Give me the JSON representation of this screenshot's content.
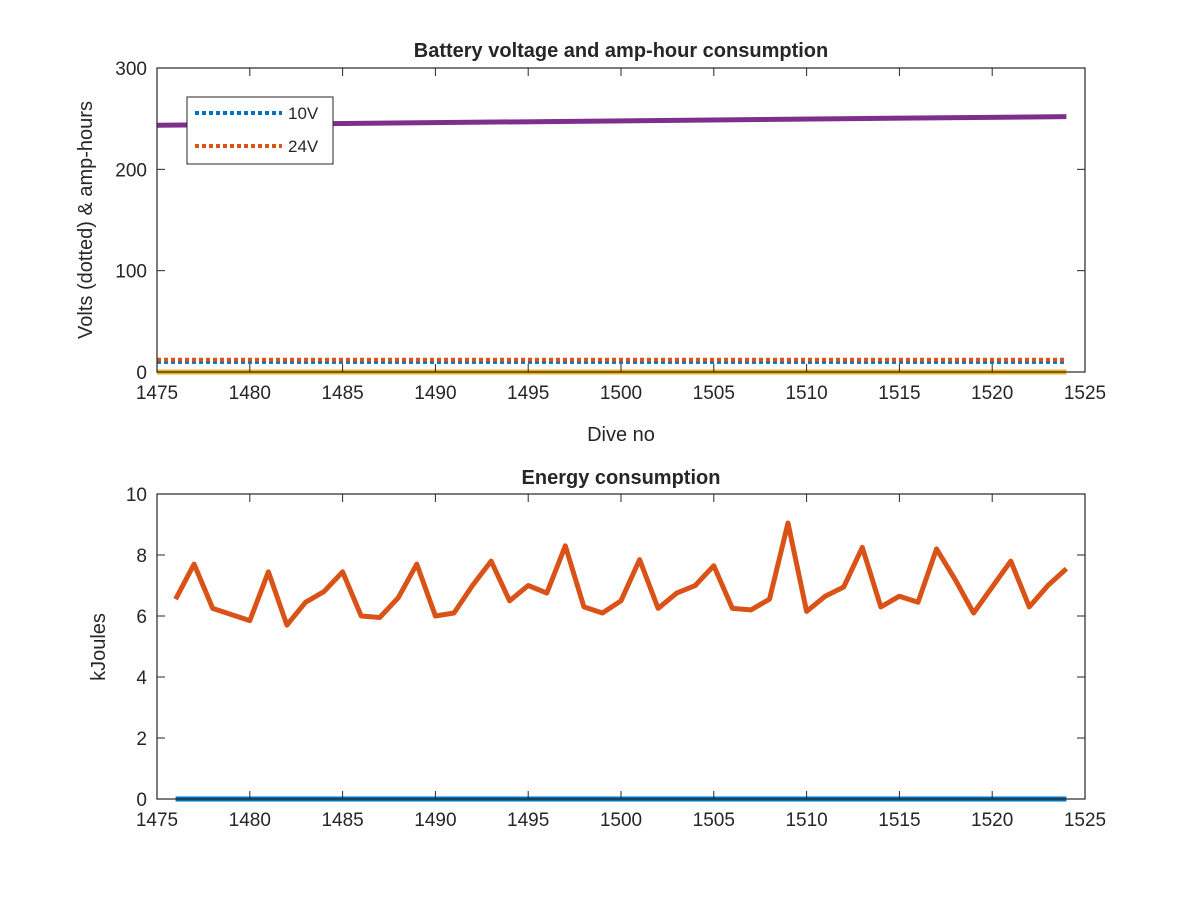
{
  "chart_data": [
    {
      "type": "line",
      "title": "Battery voltage and amp-hour consumption",
      "xlabel": "Dive no",
      "ylabel": "Volts (dotted) & amp-hours",
      "xlim": [
        1475,
        1525
      ],
      "ylim": [
        0,
        300
      ],
      "xticks": [
        1475,
        1480,
        1485,
        1490,
        1495,
        1500,
        1505,
        1510,
        1515,
        1520,
        1525
      ],
      "yticks": [
        0,
        100,
        200,
        300
      ],
      "grid": false,
      "legend": {
        "placement": "top-left",
        "entries": [
          "10V",
          "24V"
        ]
      },
      "series": [
        {
          "name": "10V",
          "style": "dotted",
          "color": "#0072BD",
          "x": [
            1475,
            1524
          ],
          "y": [
            10,
            10
          ]
        },
        {
          "name": "24V",
          "style": "dotted",
          "color": "#D95319",
          "x": [
            1475,
            1524
          ],
          "y": [
            12,
            12
          ]
        },
        {
          "style": "solid",
          "color": "#7E2F8E",
          "x": [
            1475,
            1524
          ],
          "y": [
            243.5,
            252
          ]
        },
        {
          "style": "solid",
          "color": "#EDB120",
          "x": [
            1475,
            1524
          ],
          "y": [
            0,
            0
          ]
        }
      ]
    },
    {
      "type": "line",
      "title": "Energy consumption",
      "xlabel": "",
      "ylabel": "kJoules",
      "xlim": [
        1475,
        1525
      ],
      "ylim": [
        0,
        10
      ],
      "xticks": [
        1475,
        1480,
        1485,
        1490,
        1495,
        1500,
        1505,
        1510,
        1515,
        1520,
        1525
      ],
      "yticks": [
        0,
        2,
        4,
        6,
        8,
        10
      ],
      "grid": false,
      "series": [
        {
          "style": "solid",
          "color": "#0072BD",
          "x": [
            1476,
            1524
          ],
          "y": [
            0,
            0
          ]
        },
        {
          "style": "solid",
          "color": "#D95319",
          "x": [
            1476,
            1477,
            1478,
            1479,
            1480,
            1481,
            1482,
            1483,
            1484,
            1485,
            1486,
            1487,
            1488,
            1489,
            1490,
            1491,
            1492,
            1493,
            1494,
            1495,
            1496,
            1497,
            1498,
            1499,
            1500,
            1501,
            1502,
            1503,
            1504,
            1505,
            1506,
            1507,
            1508,
            1509,
            1510,
            1511,
            1512,
            1513,
            1514,
            1515,
            1516,
            1517,
            1518,
            1519,
            1520,
            1521,
            1522,
            1523,
            1524
          ],
          "y": [
            6.55,
            7.7,
            6.25,
            6.05,
            5.85,
            7.45,
            5.7,
            6.45,
            6.8,
            7.45,
            6.0,
            5.95,
            6.6,
            7.7,
            6.0,
            6.1,
            7.0,
            7.8,
            6.5,
            7.0,
            6.75,
            8.3,
            6.3,
            6.1,
            6.5,
            7.85,
            6.25,
            6.75,
            7.0,
            7.65,
            6.25,
            6.2,
            6.55,
            9.05,
            6.15,
            6.65,
            6.95,
            8.25,
            6.3,
            6.65,
            6.45,
            8.2,
            7.2,
            6.1,
            6.95,
            7.8,
            6.3,
            7.0,
            7.55
          ]
        }
      ]
    }
  ]
}
